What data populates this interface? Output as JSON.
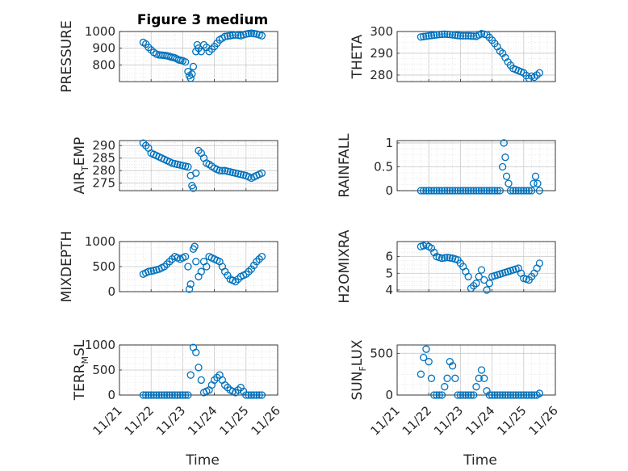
{
  "figure": {
    "title": "Figure 3 medium",
    "xlabel": "Time",
    "marker_color": "#0072BD",
    "x_ticks": [
      "11/21",
      "11/22",
      "11/23",
      "11/24",
      "11/25",
      "11/26"
    ]
  },
  "chart_data": [
    {
      "type": "scatter",
      "title": "Figure 3 medium",
      "ylabel": {
        "main": "PRESSURE"
      },
      "ylim": [
        700,
        1000
      ],
      "yticks": [
        800,
        900,
        1000
      ],
      "xlim": [
        "11/21",
        "11/26"
      ],
      "grid": true,
      "x": [
        "11/21 18:00",
        "11/21 20:00",
        "11/21 22:00",
        "11/22 00:00",
        "11/22 02:00",
        "11/22 04:00",
        "11/22 06:00",
        "11/22 09:00",
        "11/22 12:00",
        "11/22 15:00",
        "11/22 18:00",
        "11/22 21:00",
        "11/23 00:00",
        "11/23 02:00",
        "11/23 04:00",
        "11/23 05:00",
        "11/23 06:00",
        "11/23 07:00",
        "11/23 08:00",
        "11/23 10:00",
        "11/23 11:00",
        "11/23 12:00",
        "11/23 14:00",
        "11/23 16:00",
        "11/23 18:00",
        "11/23 20:00",
        "11/23 22:00",
        "11/24 00:00",
        "11/24 04:00",
        "11/24 08:00",
        "11/24 12:00",
        "11/24 16:00",
        "11/24 20:00",
        "11/25 00:00",
        "11/25 04:00",
        "11/25 08:00",
        "11/25 12:00"
      ],
      "y": [
        935,
        925,
        905,
        890,
        875,
        865,
        860,
        858,
        855,
        848,
        842,
        830,
        825,
        818,
        760,
        735,
        720,
        745,
        790,
        880,
        920,
        900,
        880,
        920,
        905,
        880,
        895,
        910,
        950,
        970,
        975,
        980,
        975,
        985,
        990,
        985,
        975
      ]
    },
    {
      "type": "scatter",
      "ylabel": {
        "main": "THETA"
      },
      "ylim": [
        277,
        300
      ],
      "yticks": [
        280,
        290,
        300
      ],
      "xlim": [
        "11/21",
        "11/26"
      ],
      "grid": true,
      "x": [
        "11/21 18:00",
        "11/22 00:00",
        "11/22 06:00",
        "11/22 12:00",
        "11/22 18:00",
        "11/23 00:00",
        "11/23 06:00",
        "11/23 12:00",
        "11/23 16:00",
        "11/23 20:00",
        "11/24 00:00",
        "11/24 04:00",
        "11/24 06:00",
        "11/24 08:00",
        "11/24 12:00",
        "11/24 16:00",
        "11/24 20:00",
        "11/25 00:00",
        "11/25 04:00",
        "11/25 06:00",
        "11/25 08:00",
        "11/25 12:00"
      ],
      "y": [
        297.5,
        298,
        298.5,
        298.8,
        298.5,
        298,
        298,
        297.8,
        299,
        298.5,
        296,
        293,
        291,
        290,
        286,
        283,
        282,
        281,
        278.5,
        279.5,
        279,
        281
      ]
    },
    {
      "type": "scatter",
      "ylabel": {
        "main": "AIR",
        "sub": "T",
        "rest": "EMP"
      },
      "ylim": [
        272,
        292
      ],
      "yticks": [
        275,
        280,
        285,
        290
      ],
      "xlim": [
        "11/21",
        "11/26"
      ],
      "grid": true,
      "x": [
        "11/21 18:00",
        "11/21 20:00",
        "11/21 22:00",
        "11/22 00:00",
        "11/22 04:00",
        "11/22 08:00",
        "11/22 12:00",
        "11/22 16:00",
        "11/22 20:00",
        "11/23 00:00",
        "11/23 04:00",
        "11/23 06:00",
        "11/23 07:00",
        "11/23 08:00",
        "11/23 10:00",
        "11/23 12:00",
        "11/23 14:00",
        "11/23 16:00",
        "11/23 18:00",
        "11/23 20:00",
        "11/24 00:00",
        "11/24 04:00",
        "11/24 08:00",
        "11/24 12:00",
        "11/24 16:00",
        "11/24 20:00",
        "11/25 00:00",
        "11/25 04:00",
        "11/25 08:00",
        "11/25 12:00"
      ],
      "y": [
        291,
        290,
        289,
        287,
        286,
        285,
        284,
        283,
        282.5,
        282,
        281.5,
        278,
        274,
        273,
        279,
        288,
        287,
        285,
        283,
        282.5,
        281,
        280,
        280,
        279.5,
        279,
        278.5,
        278,
        277,
        278,
        279
      ]
    },
    {
      "type": "scatter",
      "ylabel": {
        "main": "RAINFALL"
      },
      "ylim": [
        0,
        1.05
      ],
      "yticks": [
        0,
        0.5,
        1
      ],
      "xlim": [
        "11/21",
        "11/26"
      ],
      "grid": true,
      "x": [
        "11/21 18:00",
        "11/22 00:00",
        "11/22 06:00",
        "11/22 12:00",
        "11/22 18:00",
        "11/23 00:00",
        "11/23 06:00",
        "11/23 12:00",
        "11/23 18:00",
        "11/24 00:00",
        "11/24 06:00",
        "11/24 08:00",
        "11/24 09:00",
        "11/24 10:00",
        "11/24 11:00",
        "11/24 14:00",
        "11/24 20:00",
        "11/25 00:00",
        "11/25 06:00",
        "11/25 09:00",
        "11/25 12:00"
      ],
      "y": [
        0,
        0,
        0,
        0,
        0,
        0,
        0,
        0,
        0,
        0,
        0,
        0.5,
        1,
        0.7,
        0.3,
        0,
        0,
        0,
        0,
        0.3,
        0
      ]
    },
    {
      "type": "scatter",
      "ylabel": {
        "main": "MIXDEPTH"
      },
      "ylim": [
        0,
        1000
      ],
      "yticks": [
        0,
        500,
        1000
      ],
      "xlim": [
        "11/21",
        "11/26"
      ],
      "grid": true,
      "x": [
        "11/21 18:00",
        "11/21 22:00",
        "11/22 02:00",
        "11/22 06:00",
        "11/22 10:00",
        "11/22 14:00",
        "11/22 18:00",
        "11/22 22:00",
        "11/23 02:00",
        "11/23 04:00",
        "11/23 05:00",
        "11/23 06:00",
        "11/23 08:00",
        "11/23 09:00",
        "11/23 10:00",
        "11/23 12:00",
        "11/23 14:00",
        "11/23 16:00",
        "11/23 18:00",
        "11/23 20:00",
        "11/24 00:00",
        "11/24 04:00",
        "11/24 08:00",
        "11/24 12:00",
        "11/24 16:00",
        "11/24 20:00",
        "11/25 00:00",
        "11/25 04:00",
        "11/25 08:00",
        "11/25 12:00"
      ],
      "y": [
        350,
        400,
        420,
        450,
        500,
        600,
        700,
        650,
        700,
        500,
        50,
        150,
        850,
        900,
        600,
        300,
        400,
        600,
        500,
        700,
        650,
        600,
        400,
        250,
        200,
        300,
        350,
        450,
        600,
        700
      ]
    },
    {
      "type": "scatter",
      "ylabel": {
        "main": "H2OMIXRA"
      },
      "ylim": [
        3.9,
        6.9
      ],
      "yticks": [
        4,
        5,
        6
      ],
      "xlim": [
        "11/21",
        "11/26"
      ],
      "grid": true,
      "x": [
        "11/21 18:00",
        "11/21 22:00",
        "11/22 02:00",
        "11/22 06:00",
        "11/22 10:00",
        "11/22 14:00",
        "11/22 18:00",
        "11/22 22:00",
        "11/23 02:00",
        "11/23 06:00",
        "11/23 08:00",
        "11/23 12:00",
        "11/23 16:00",
        "11/23 20:00",
        "11/24 00:00",
        "11/24 04:00",
        "11/24 08:00",
        "11/24 12:00",
        "11/24 16:00",
        "11/24 20:00",
        "11/25 00:00",
        "11/25 04:00",
        "11/25 08:00",
        "11/25 12:00"
      ],
      "y": [
        6.6,
        6.7,
        6.5,
        6.0,
        5.9,
        5.95,
        5.9,
        5.8,
        5.4,
        4.8,
        4.1,
        4.4,
        5.2,
        4.0,
        4.8,
        4.9,
        5.0,
        5.1,
        5.2,
        5.3,
        4.7,
        4.6,
        5.0,
        5.6
      ]
    },
    {
      "type": "scatter",
      "ylabel": {
        "main": "TERR",
        "sub": "M",
        "rest": "SL"
      },
      "ylim": [
        0,
        1000
      ],
      "yticks": [
        0,
        500,
        1000
      ],
      "xlim": [
        "11/21",
        "11/26"
      ],
      "grid": true,
      "x": [
        "11/21 18:00",
        "11/22 00:00",
        "11/22 06:00",
        "11/22 12:00",
        "11/22 18:00",
        "11/23 00:00",
        "11/23 04:00",
        "11/23 06:00",
        "11/23 08:00",
        "11/23 10:00",
        "11/23 12:00",
        "11/23 16:00",
        "11/23 20:00",
        "11/24 00:00",
        "11/24 04:00",
        "11/24 08:00",
        "11/24 12:00",
        "11/24 16:00",
        "11/24 20:00",
        "11/25 00:00",
        "11/25 06:00",
        "11/25 12:00"
      ],
      "y": [
        0,
        0,
        0,
        0,
        0,
        0,
        0,
        400,
        950,
        850,
        550,
        50,
        100,
        300,
        400,
        200,
        100,
        50,
        150,
        0,
        0,
        0
      ]
    },
    {
      "type": "scatter",
      "ylabel": {
        "main": "SUN",
        "sub": "F",
        "rest": "LUX"
      },
      "ylim": [
        0,
        600
      ],
      "yticks": [
        0,
        500
      ],
      "xlim": [
        "11/21",
        "11/26"
      ],
      "grid": true,
      "x": [
        "11/21 18:00",
        "11/21 20:00",
        "11/21 22:00",
        "11/22 00:00",
        "11/22 02:00",
        "11/22 04:00",
        "11/22 06:00",
        "11/22 10:00",
        "11/22 14:00",
        "11/22 16:00",
        "11/22 18:00",
        "11/22 20:00",
        "11/22 22:00",
        "11/23 02:00",
        "11/23 06:00",
        "11/23 10:00",
        "11/23 14:00",
        "11/23 16:00",
        "11/23 18:00",
        "11/23 20:00",
        "11/23 22:00",
        "11/24 02:00",
        "11/24 06:00",
        "11/24 10:00",
        "11/24 14:00",
        "11/24 18:00",
        "11/24 22:00",
        "11/25 02:00",
        "11/25 06:00",
        "11/25 10:00",
        "11/25 12:00"
      ],
      "y": [
        250,
        450,
        550,
        400,
        200,
        0,
        0,
        0,
        200,
        400,
        350,
        200,
        0,
        0,
        0,
        0,
        200,
        300,
        200,
        50,
        0,
        0,
        0,
        0,
        0,
        0,
        0,
        0,
        0,
        0,
        20
      ]
    }
  ]
}
